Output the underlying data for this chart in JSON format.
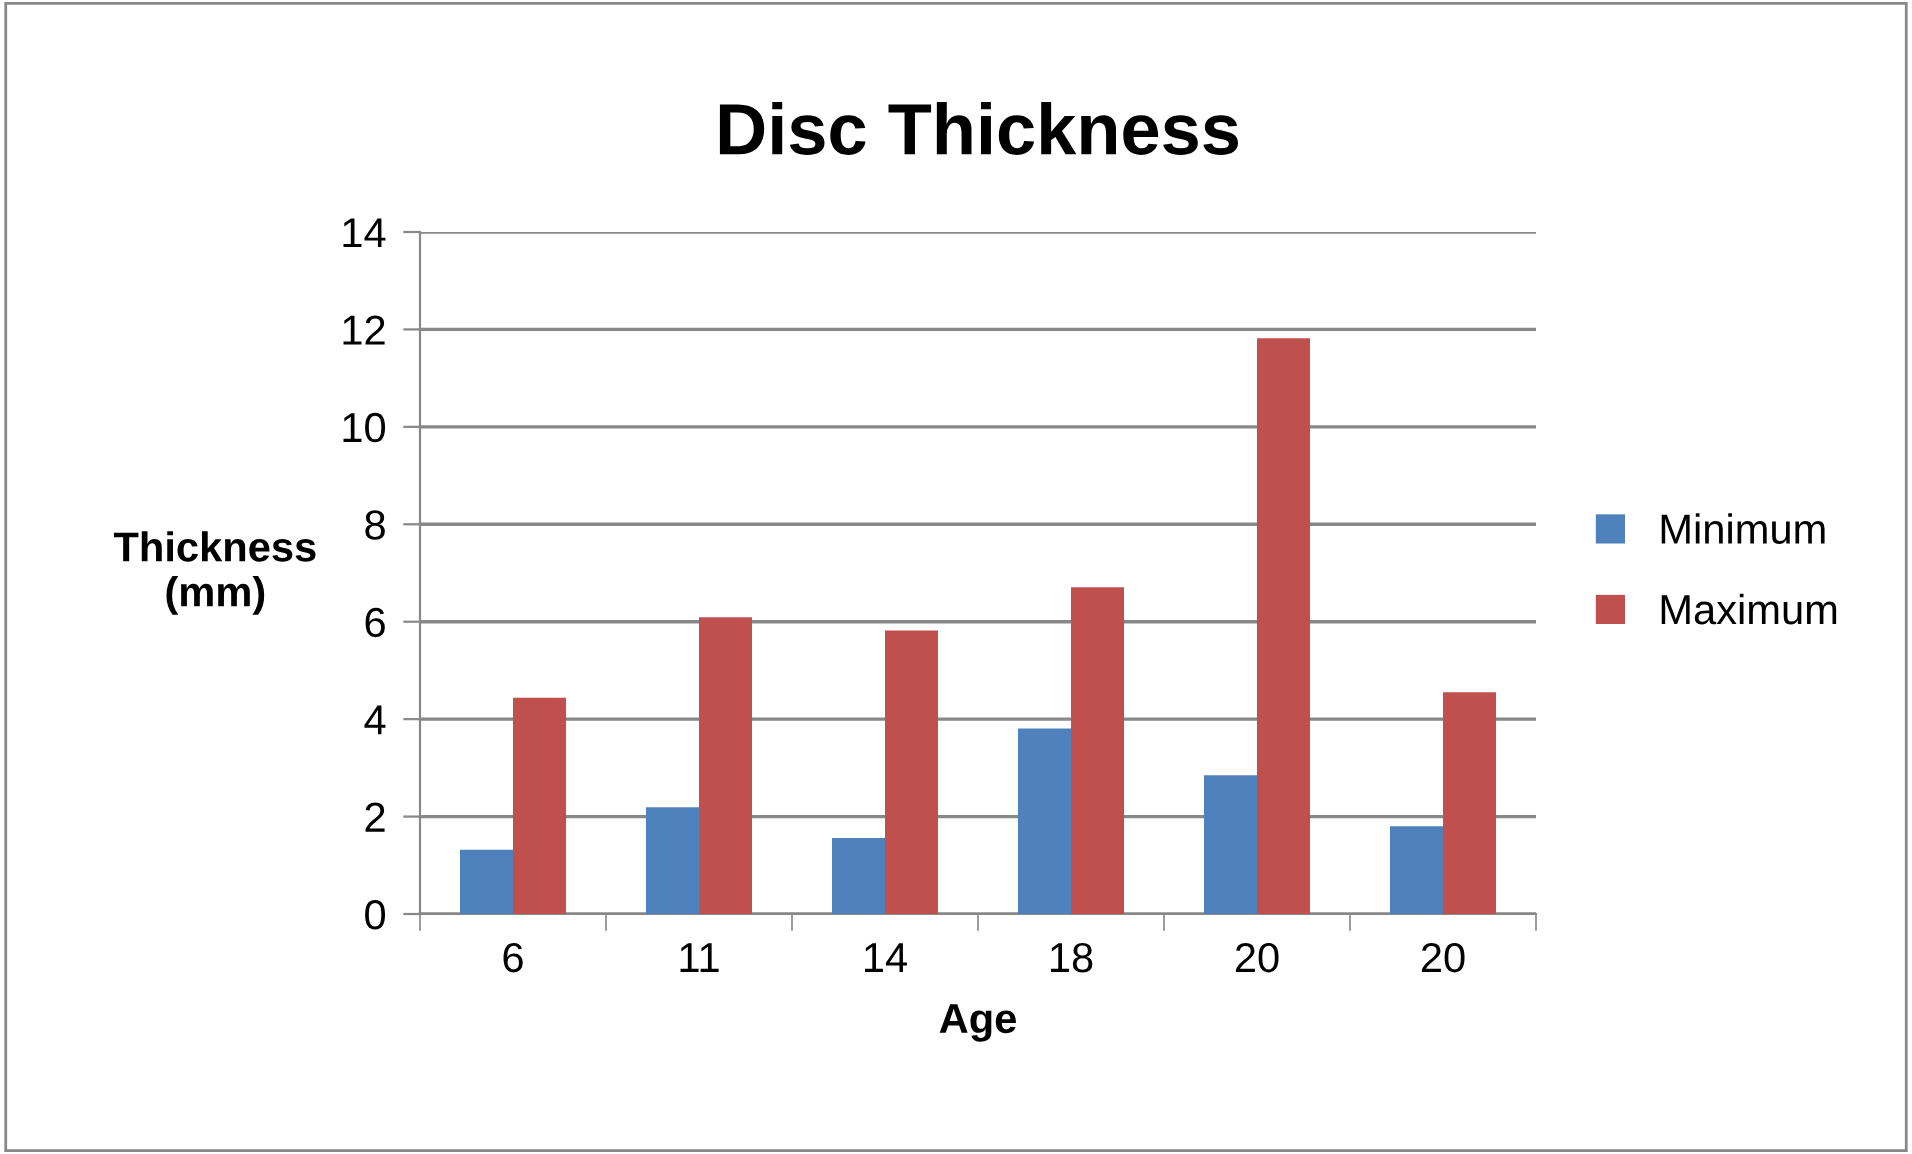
{
  "chart_data": {
    "type": "bar",
    "title": "Disc Thickness",
    "xlabel": "Age",
    "ylabel": "Thickness\n(mm)",
    "categories": [
      "6",
      "11",
      "14",
      "18",
      "20",
      "20"
    ],
    "series": [
      {
        "name": "Minimum",
        "color": "#4f81bd",
        "values": [
          1.32,
          2.19,
          1.56,
          3.81,
          2.85,
          1.8
        ]
      },
      {
        "name": "Maximum",
        "color": "#c0504d",
        "values": [
          4.44,
          6.09,
          5.82,
          6.71,
          11.82,
          4.55
        ]
      }
    ],
    "ylim": [
      0,
      14
    ],
    "yticks": [
      0,
      2,
      4,
      6,
      8,
      10,
      12,
      14
    ],
    "grid": "y",
    "legend": "right"
  }
}
